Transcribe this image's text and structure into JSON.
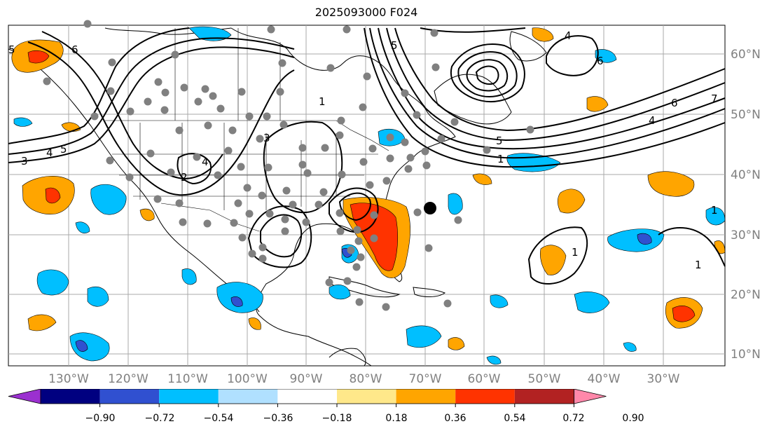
{
  "title": "2025093000 F024",
  "lat_labels": [
    "60°N",
    "50°N",
    "40°N",
    "30°N",
    "20°N",
    "10°N"
  ],
  "lon_labels": [
    "130°W",
    "120°W",
    "110°W",
    "100°W",
    "90°W",
    "80°W",
    "70°W",
    "60°W",
    "50°W",
    "40°W",
    "30°W"
  ],
  "colorbar": {
    "ticks": [
      "−0.90",
      "−0.72",
      "−0.54",
      "−0.36",
      "−0.18",
      "0.18",
      "0.36",
      "0.54",
      "0.72",
      "0.90"
    ],
    "colors": [
      "#9b30d0",
      "#000080",
      "#3050d0",
      "#00bfff",
      "#b0e0ff",
      "#ffffff",
      "#ffe88a",
      "#ffa500",
      "#ff3300",
      "#b22222",
      "#ff88aa"
    ]
  },
  "contour_labels": [
    "4",
    "5",
    "6",
    "3",
    "4",
    "5",
    "3",
    "2",
    "1",
    "5",
    "4",
    "1",
    "5",
    "6",
    "7",
    "1",
    "1",
    "1",
    "4",
    "6"
  ],
  "colors": {
    "observation_dot": "#808080",
    "storm_marker": "#000000",
    "contour": "#000000",
    "grid": "#a9a9a9"
  }
}
